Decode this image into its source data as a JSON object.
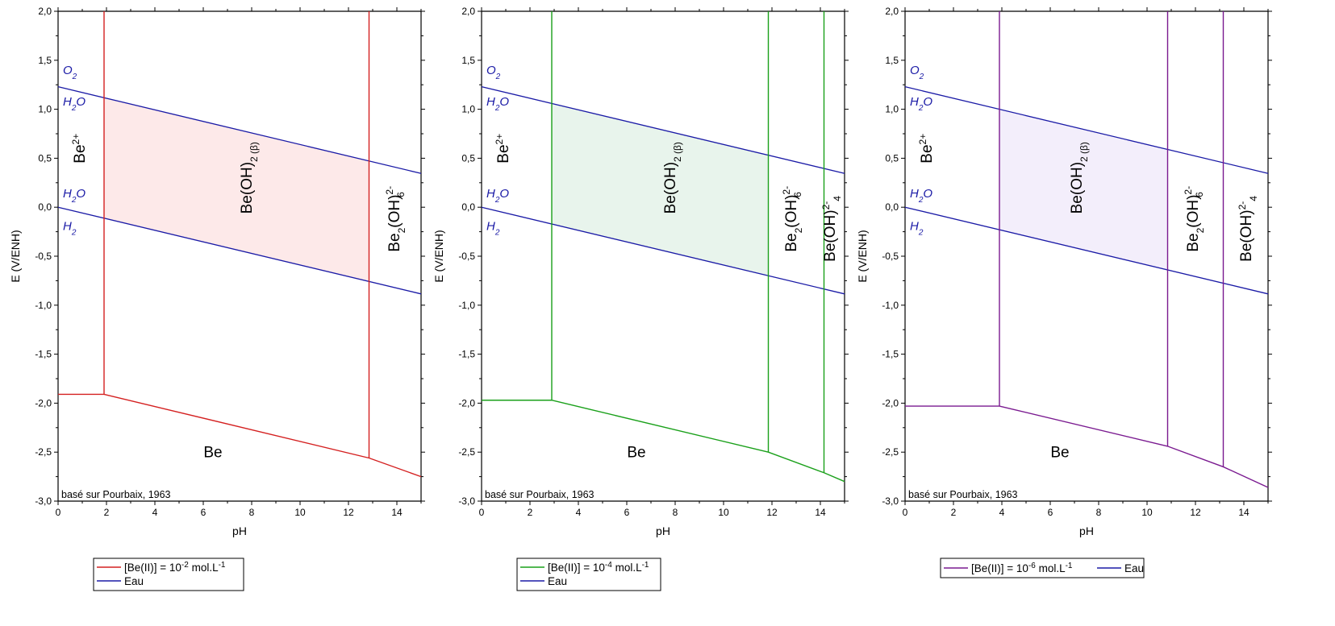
{
  "chart_data": [
    {
      "type": "line",
      "xlabel": "pH",
      "ylabel": "E (V/ENH)",
      "xlim": [
        0,
        15
      ],
      "ylim": [
        -3.0,
        2.0
      ],
      "xticks": [
        "0",
        "2",
        "4",
        "6",
        "8",
        "10",
        "12",
        "14"
      ],
      "yticks": [
        "-3,0",
        "-2,5",
        "-2,0",
        "-1,5",
        "-1,0",
        "-0,5",
        "0,0",
        "0,5",
        "1,0",
        "1,5",
        "2,0"
      ],
      "color": "#d42020",
      "fill": "#fde9e9",
      "source_note": "basé sur Pourbaix, 1963",
      "be_boundary": {
        "x": [
          0,
          1.9,
          12.85,
          15
        ],
        "y": [
          -1.91,
          -1.91,
          -2.56,
          -2.75
        ]
      },
      "verticals": [
        1.9,
        12.85
      ],
      "legend": [
        {
          "prefix": "[Be(II)] = 10",
          "exp": "-2",
          "suffix": " mol.L",
          "unit_exp": "-1"
        },
        {
          "prefix": "Eau",
          "exp": "",
          "suffix": "",
          "unit_exp": ""
        }
      ],
      "species": [
        {
          "base": "Be",
          "sub": "",
          "sup": "2+",
          "sub2": "",
          "x": 1.1,
          "y": 0.6
        },
        {
          "base": "Be(OH)",
          "sub": "2 (β)",
          "sup": "",
          "sub2": "",
          "x": 8.0,
          "y": 0.3
        },
        {
          "base": "Be",
          "sub": "2",
          "sup": "",
          "base2": "(OH)",
          "sub2": "6",
          "sup2": "2-",
          "x": 14.1,
          "y": -0.12
        },
        {
          "base": "Be",
          "sub": "",
          "sup": "",
          "sub2": "",
          "x": 6.4,
          "y": -2.55,
          "horizontal": true
        }
      ]
    },
    {
      "type": "line",
      "xlabel": "pH",
      "ylabel": "E (V/ENH)",
      "xlim": [
        0,
        15
      ],
      "ylim": [
        -3.0,
        2.0
      ],
      "xticks": [
        "0",
        "2",
        "4",
        "6",
        "8",
        "10",
        "12",
        "14"
      ],
      "yticks": [
        "-3,0",
        "-2,5",
        "-2,0",
        "-1,5",
        "-1,0",
        "-0,5",
        "0,0",
        "0,5",
        "1,0",
        "1,5",
        "2,0"
      ],
      "color": "#1aa01a",
      "fill": "#e8f4ec",
      "source_note": "basé sur Pourbaix, 1963",
      "be_boundary": {
        "x": [
          0,
          2.9,
          11.85,
          14.15,
          15
        ],
        "y": [
          -1.97,
          -1.97,
          -2.5,
          -2.71,
          -2.8
        ]
      },
      "verticals": [
        2.9,
        11.85,
        14.15
      ],
      "legend": [
        {
          "prefix": "[Be(II)] = 10",
          "exp": "-4",
          "suffix": " mol.L",
          "unit_exp": "-1"
        },
        {
          "prefix": "Eau",
          "exp": "",
          "suffix": "",
          "unit_exp": ""
        }
      ],
      "species": [
        {
          "base": "Be",
          "sub": "",
          "sup": "2+",
          "sub2": "",
          "x": 1.1,
          "y": 0.6
        },
        {
          "base": "Be(OH)",
          "sub": "2 (β)",
          "sup": "",
          "sub2": "",
          "x": 8.0,
          "y": 0.3
        },
        {
          "base": "Be",
          "sub": "2",
          "sup": "",
          "base2": "(OH)",
          "sub2": "6",
          "sup2": "2-",
          "x": 13.0,
          "y": -0.12
        },
        {
          "base": "Be(OH)",
          "sub": "4",
          "sup": "2-",
          "sub2": "",
          "x": 14.6,
          "y": -0.22
        },
        {
          "base": "Be",
          "sub": "",
          "sup": "",
          "sub2": "",
          "x": 6.4,
          "y": -2.55,
          "horizontal": true
        }
      ]
    },
    {
      "type": "line",
      "xlabel": "pH",
      "ylabel": "E (V/ENH)",
      "xlim": [
        0,
        15
      ],
      "ylim": [
        -3.0,
        2.0
      ],
      "xticks": [
        "0",
        "2",
        "4",
        "6",
        "8",
        "10",
        "12",
        "14"
      ],
      "yticks": [
        "-3,0",
        "-2,5",
        "-2,0",
        "-1,5",
        "-1,0",
        "-0,5",
        "0,0",
        "0,5",
        "1,0",
        "1,5",
        "2,0"
      ],
      "color": "#7a1a90",
      "fill": "#f3eefb",
      "source_note": "basé sur Pourbaix, 1963",
      "be_boundary": {
        "x": [
          0,
          3.9,
          10.85,
          13.15,
          15
        ],
        "y": [
          -2.03,
          -2.03,
          -2.44,
          -2.65,
          -2.86
        ]
      },
      "verticals": [
        3.9,
        10.85,
        13.15
      ],
      "legend": [
        {
          "prefix": "[Be(II)] = 10",
          "exp": "-6",
          "suffix": " mol.L",
          "unit_exp": "-1"
        },
        {
          "prefix": "Eau",
          "exp": "",
          "suffix": "",
          "unit_exp": ""
        }
      ],
      "species": [
        {
          "base": "Be",
          "sub": "",
          "sup": "2+",
          "sub2": "",
          "x": 1.1,
          "y": 0.6
        },
        {
          "base": "Be(OH)",
          "sub": "2 (β)",
          "sup": "",
          "sub2": "",
          "x": 7.3,
          "y": 0.3
        },
        {
          "base": "Be",
          "sub": "2",
          "sup": "",
          "base2": "(OH)",
          "sub2": "6",
          "sup2": "2-",
          "x": 12.1,
          "y": -0.12
        },
        {
          "base": "Be(OH)",
          "sub": "4",
          "sup": "2-",
          "sub2": "",
          "x": 14.3,
          "y": -0.22
        },
        {
          "base": "Be",
          "sub": "",
          "sup": "",
          "sub2": "",
          "x": 6.4,
          "y": -2.55,
          "horizontal": true
        }
      ]
    }
  ],
  "water": {
    "color": "#1a1aa6",
    "o2_line": {
      "x": [
        0,
        15
      ],
      "y": [
        1.23,
        0.345
      ]
    },
    "h2_line": {
      "x": [
        0,
        15
      ],
      "y": [
        0.0,
        -0.885
      ]
    },
    "labels": [
      {
        "base": "O",
        "sub": "2",
        "tail": "",
        "y": 1.4
      },
      {
        "base": "H",
        "sub": "2",
        "tail": "O",
        "y": 1.08
      },
      {
        "base": "H",
        "sub": "2",
        "tail": "O",
        "y": 0.14
      },
      {
        "base": "H",
        "sub": "2",
        "tail": "",
        "y": -0.19
      }
    ]
  }
}
